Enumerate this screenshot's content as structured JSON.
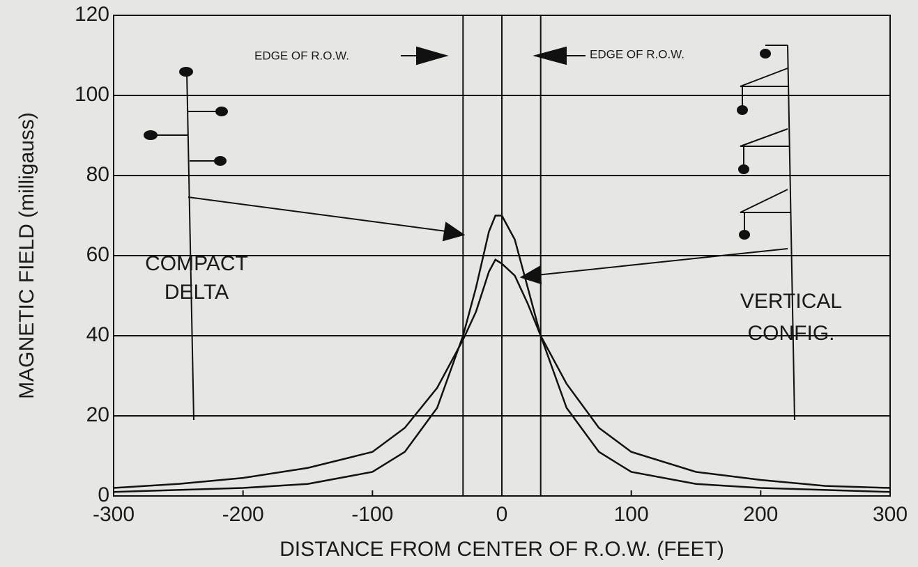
{
  "chart_data": {
    "type": "line",
    "xlabel": "DISTANCE FROM CENTER OF R.O.W. (FEET)",
    "ylabel": "MAGNETIC FIELD (milligauss)",
    "x": [
      -300,
      -250,
      -200,
      -150,
      -100,
      -75,
      -50,
      -30,
      -20,
      -10,
      -5,
      0,
      10,
      20,
      30,
      50,
      75,
      100,
      150,
      200,
      250,
      300
    ],
    "series": [
      {
        "color": "#111111",
        "values": [
          1,
          1.5,
          2,
          3,
          6,
          11,
          22,
          40,
          52,
          66,
          70,
          70,
          64,
          52,
          40,
          22,
          11,
          6,
          3,
          2,
          1.5,
          1
        ]
      },
      {
        "color": "#111111",
        "values": [
          2,
          3,
          4.5,
          7,
          11,
          17,
          27,
          39,
          46,
          56,
          59,
          58,
          55,
          48,
          40,
          28,
          17,
          11,
          6,
          4,
          2.5,
          2
        ]
      }
    ],
    "xlim": [
      -300,
      300
    ],
    "ylim": [
      0,
      120
    ],
    "xticks": [
      -300,
      -200,
      -100,
      0,
      100,
      200,
      300
    ],
    "yticks": [
      0,
      20,
      40,
      60,
      80,
      100,
      120
    ],
    "grid": true,
    "reference_lines": [
      -30,
      0,
      30
    ],
    "annotations": [
      {
        "lines": [
          "EDGE OF R.O.W."
        ]
      },
      {
        "lines": [
          "EDGE OF R.O.W."
        ]
      },
      {
        "lines": [
          "COMPACT",
          "DELTA"
        ]
      },
      {
        "lines": [
          "VERTICAL",
          "CONFIG."
        ]
      }
    ]
  }
}
